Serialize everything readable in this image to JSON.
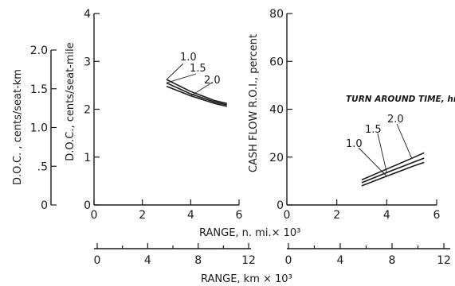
{
  "charts": [
    {
      "id": "doc",
      "type": "line",
      "x_range": [
        0,
        6
      ],
      "x_ticks": [
        "0",
        "2",
        "4",
        "6"
      ],
      "y_range": [
        0,
        4
      ],
      "y_ticks": [
        "0",
        "1",
        "2",
        "3",
        "4"
      ],
      "ylabel_outer": "D.O.C. , cents/seat-km",
      "ylabel_outer_ticks": [
        "0",
        ".5",
        "1.0",
        "1.5",
        "2.0"
      ],
      "ylabel_outer_tick_values": [
        0,
        0.5,
        1.0,
        1.5,
        2.0
      ],
      "ylabel": "D.O.C., cents/seat-mile",
      "series": [
        {
          "name": "1.0",
          "x": [
            3.0,
            4.0,
            5.0,
            5.5
          ],
          "y": [
            2.62,
            2.37,
            2.18,
            2.12
          ]
        },
        {
          "name": "1.5",
          "x": [
            3.0,
            4.0,
            5.0,
            5.5
          ],
          "y": [
            2.55,
            2.32,
            2.15,
            2.09
          ]
        },
        {
          "name": "2.0",
          "x": [
            3.0,
            4.0,
            5.0,
            5.5
          ],
          "y": [
            2.48,
            2.28,
            2.12,
            2.06
          ]
        }
      ]
    },
    {
      "id": "roi",
      "type": "line",
      "x_range": [
        0,
        6
      ],
      "x_ticks": [
        "0",
        "2",
        "4",
        "6"
      ],
      "y_range": [
        0,
        80
      ],
      "y_ticks": [
        "0",
        "20",
        "40",
        "60",
        "80"
      ],
      "ylabel": "CASH FLOW R.O.I., percent",
      "annotation": "TURN AROUND TIME, hr",
      "series": [
        {
          "name": "1.0",
          "x": [
            3.0,
            4.0,
            5.0,
            5.5
          ],
          "y": [
            8.0,
            12.0,
            16.0,
            17.8
          ]
        },
        {
          "name": "1.5",
          "x": [
            3.0,
            4.0,
            5.0,
            5.5
          ],
          "y": [
            9.3,
            13.5,
            17.6,
            19.6
          ]
        },
        {
          "name": "2.0",
          "x": [
            3.0,
            4.0,
            5.0,
            5.5
          ],
          "y": [
            10.5,
            15.0,
            19.5,
            21.8
          ]
        }
      ]
    }
  ],
  "xlabel_nmi": "RANGE, n. mi.× 10³",
  "km_axis": {
    "ticks": [
      "0",
      "4",
      "8",
      "12"
    ],
    "range": [
      0,
      12
    ],
    "label": "RANGE, km × 10³"
  }
}
